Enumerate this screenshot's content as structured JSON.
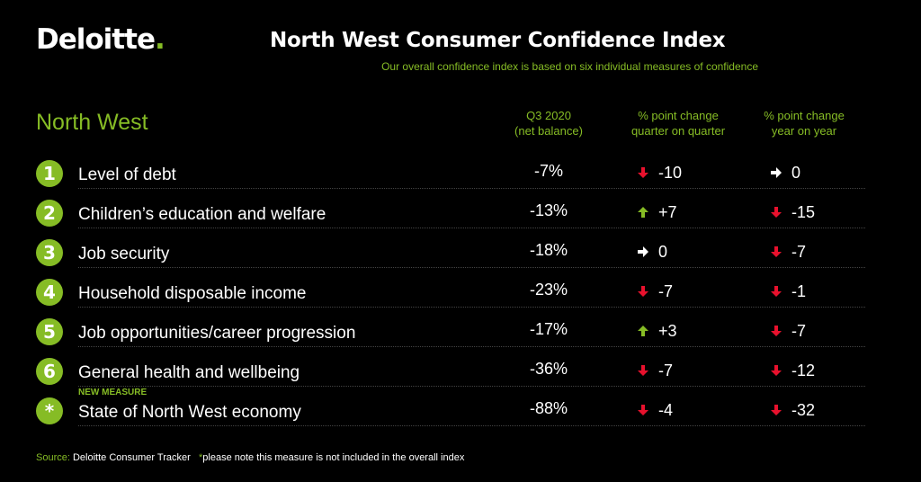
{
  "logo": {
    "text": "Deloitte",
    "dot": "."
  },
  "title": "North West Consumer Confidence Index",
  "subtitle": "Our overall confidence index is based on six individual measures of confidence",
  "region": "North West",
  "columns": {
    "balance": [
      "Q3 2020",
      "(net balance)"
    ],
    "qoq": [
      "% point change",
      "quarter on quarter"
    ],
    "yoy": [
      "% point change",
      "year on year"
    ]
  },
  "colors": {
    "accent": "#86bc25",
    "down": "#e8112d",
    "up": "#86bc25",
    "flat": "#ffffff"
  },
  "rows": [
    {
      "num": "1",
      "label": "Level of debt",
      "balance": "-7%",
      "qoq": "-10",
      "qoq_icon": "down",
      "yoy": "0",
      "yoy_icon": "flat"
    },
    {
      "num": "2",
      "label": "Children’s education and welfare",
      "balance": "-13%",
      "qoq": "+7",
      "qoq_icon": "up",
      "yoy": "-15",
      "yoy_icon": "down"
    },
    {
      "num": "3",
      "label": "Job security",
      "balance": "-18%",
      "qoq": "0",
      "qoq_icon": "flat",
      "yoy": "-7",
      "yoy_icon": "down"
    },
    {
      "num": "4",
      "label": "Household disposable income",
      "balance": "-23%",
      "qoq": "-7",
      "qoq_icon": "down",
      "yoy": "-1",
      "yoy_icon": "down"
    },
    {
      "num": "5",
      "label": "Job opportunities/career progression",
      "balance": "-17%",
      "qoq": "+3",
      "qoq_icon": "up",
      "yoy": "-7",
      "yoy_icon": "down"
    },
    {
      "num": "6",
      "label": "General health and wellbeing",
      "balance": "-36%",
      "qoq": "-7",
      "qoq_icon": "down",
      "yoy": "-12",
      "yoy_icon": "down"
    },
    {
      "num": "*",
      "tag": "NEW MEASURE",
      "label": "State of North West economy",
      "balance": "-88%",
      "qoq": "-4",
      "qoq_icon": "down",
      "yoy": "-32",
      "yoy_icon": "down"
    }
  ],
  "footer": {
    "source_label": "Source:",
    "source_text": "Deloitte Consumer Tracker",
    "note_star": "*",
    "note_text": "please note this measure is not included in the overall index"
  }
}
